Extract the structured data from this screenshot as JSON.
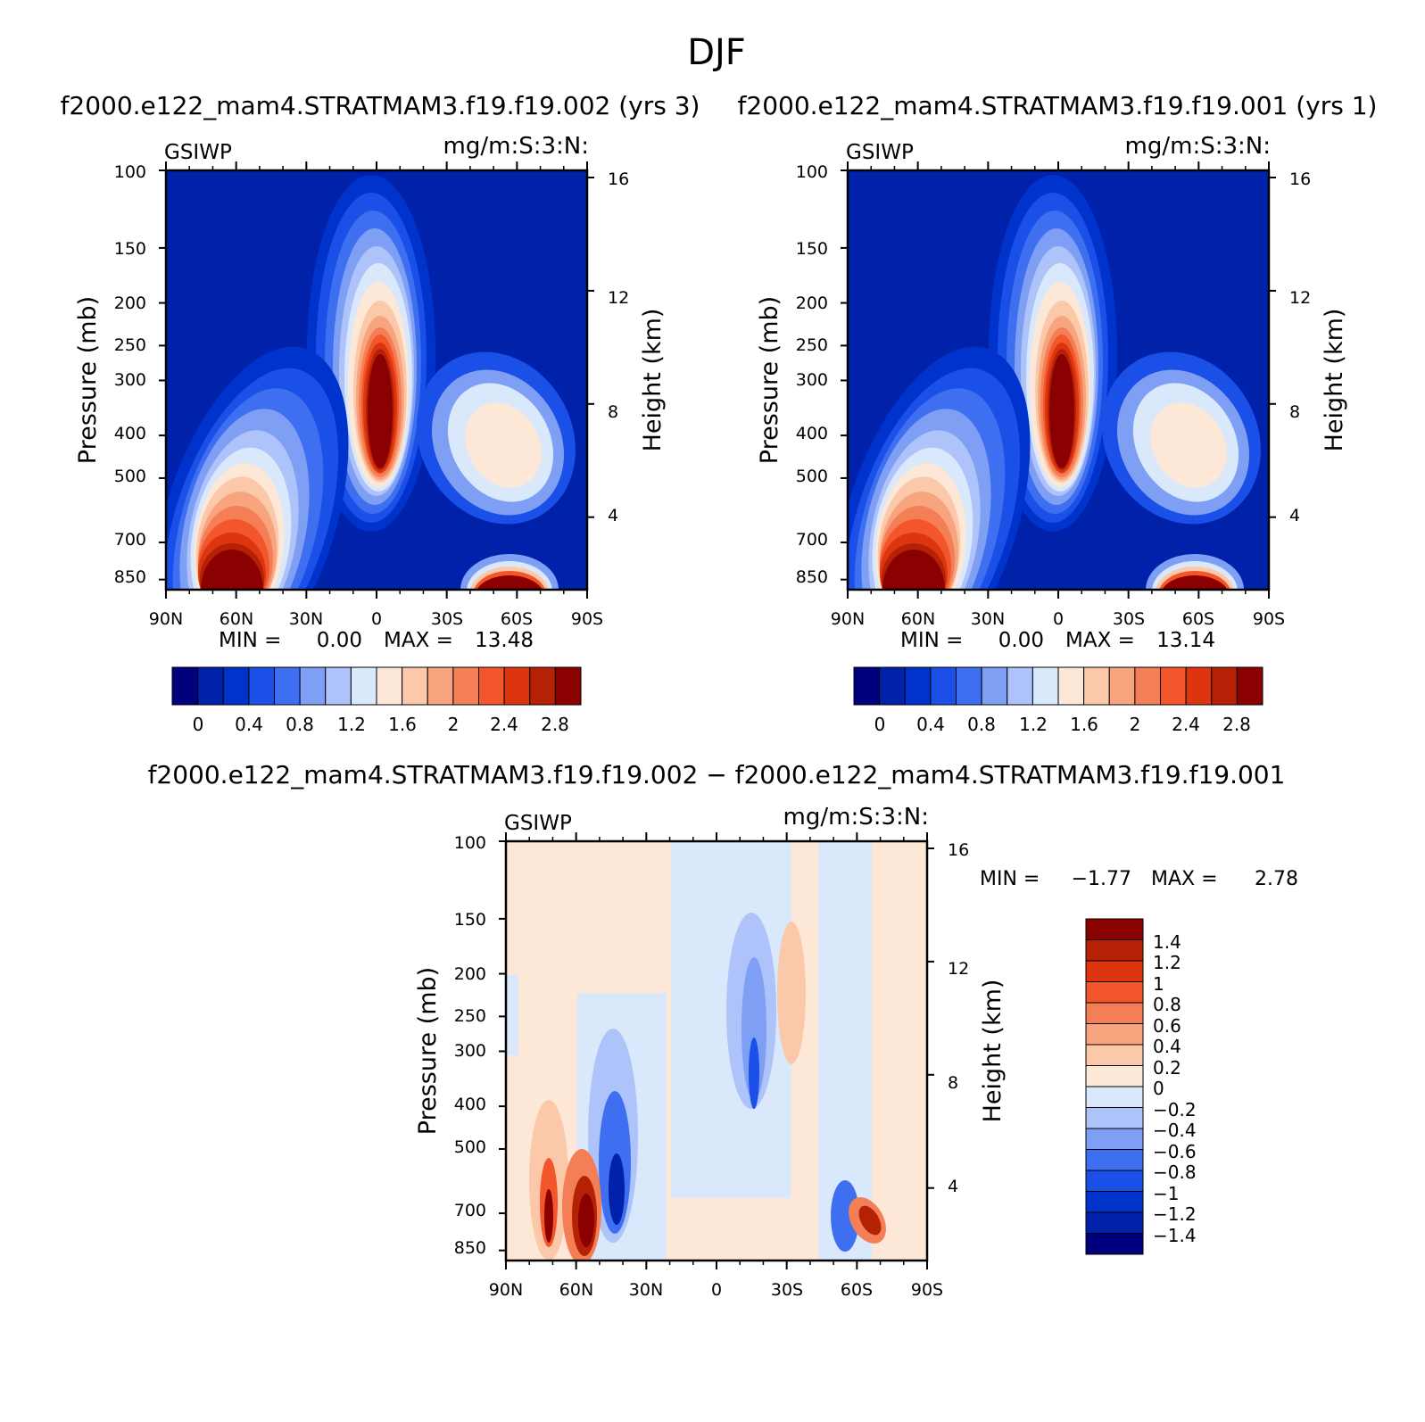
{
  "title": "DJF",
  "chart_data": [
    {
      "type": "heatmap",
      "title": "f2000.e122_mam4.STRATMAM3.f19.f19.002 (yrs 3)",
      "variable": "GSIWP",
      "units": "mg/m:S:3:N:",
      "xlabel": "",
      "ylabel": "Pressure (mb)",
      "ylabel_right": "Height (km)",
      "x_ticks": [
        "90N",
        "60N",
        "30N",
        "0",
        "30S",
        "60S",
        "90S"
      ],
      "y_ticks": [
        "100",
        "150",
        "200",
        "250",
        "300",
        "400",
        "500",
        "700",
        "850"
      ],
      "y_right_ticks": [
        "16",
        "12",
        "8",
        "4"
      ],
      "min_label": "MIN =",
      "min_value": "0.00",
      "max_label": "MAX =",
      "max_value": "13.48",
      "colorbar_labels": [
        "0",
        "0.4",
        "0.8",
        "1.2",
        "1.6",
        "2",
        "2.4",
        "2.8"
      ],
      "levels": [
        -0.2,
        0,
        0.2,
        0.4,
        0.6,
        0.8,
        1,
        1.2,
        1.4,
        1.6,
        1.8,
        2,
        2.2,
        2.4,
        2.6,
        2.8,
        3
      ]
    },
    {
      "type": "heatmap",
      "title": "f2000.e122_mam4.STRATMAM3.f19.f19.001 (yrs 1)",
      "variable": "GSIWP",
      "units": "mg/m:S:3:N:",
      "xlabel": "",
      "ylabel": "Pressure (mb)",
      "ylabel_right": "Height (km)",
      "x_ticks": [
        "90N",
        "60N",
        "30N",
        "0",
        "30S",
        "60S",
        "90S"
      ],
      "y_ticks": [
        "100",
        "150",
        "200",
        "250",
        "300",
        "400",
        "500",
        "700",
        "850"
      ],
      "y_right_ticks": [
        "16",
        "12",
        "8",
        "4"
      ],
      "min_label": "MIN =",
      "min_value": "0.00",
      "max_label": "MAX =",
      "max_value": "13.14",
      "colorbar_labels": [
        "0",
        "0.4",
        "0.8",
        "1.2",
        "1.6",
        "2",
        "2.4",
        "2.8"
      ],
      "levels": [
        -0.2,
        0,
        0.2,
        0.4,
        0.6,
        0.8,
        1,
        1.2,
        1.4,
        1.6,
        1.8,
        2,
        2.2,
        2.4,
        2.6,
        2.8,
        3
      ]
    },
    {
      "type": "heatmap",
      "title": "f2000.e122_mam4.STRATMAM3.f19.f19.002 − f2000.e122_mam4.STRATMAM3.f19.f19.001",
      "variable": "GSIWP",
      "units": "mg/m:S:3:N:",
      "xlabel": "",
      "ylabel": "Pressure (mb)",
      "ylabel_right": "Height (km)",
      "x_ticks": [
        "90N",
        "60N",
        "30N",
        "0",
        "30S",
        "60S",
        "90S"
      ],
      "y_ticks": [
        "100",
        "150",
        "200",
        "250",
        "300",
        "400",
        "500",
        "700",
        "850"
      ],
      "y_right_ticks": [
        "16",
        "12",
        "8",
        "4"
      ],
      "min_label": "MIN =",
      "min_value": "−1.77",
      "max_label": "MAX =",
      "max_value": "2.78",
      "colorbar_labels": [
        "1.4",
        "1.2",
        "1",
        "0.8",
        "0.6",
        "0.4",
        "0.2",
        "0",
        "−0.2",
        "−0.4",
        "−0.6",
        "−0.8",
        "−1",
        "−1.2",
        "−1.4"
      ]
    }
  ],
  "colors": {
    "abs_palette": [
      "#00007f",
      "#0022aa",
      "#0033cc",
      "#1a4fe8",
      "#3d6ff0",
      "#7f9ff5",
      "#aec3fa",
      "#d9e8fb",
      "#fde8d8",
      "#fbc9a9",
      "#f7a47f",
      "#f47e55",
      "#f2562a",
      "#dd3510",
      "#b52104",
      "#8b0000"
    ],
    "diff_palette": [
      "#8b0000",
      "#b52104",
      "#dd3510",
      "#f2562a",
      "#f47e55",
      "#f7a47f",
      "#fbc9a9",
      "#fde8d8",
      "#d9e8fb",
      "#aec3fa",
      "#7f9ff5",
      "#3d6ff0",
      "#1a4fe8",
      "#0033cc",
      "#0022aa",
      "#00007f"
    ]
  }
}
